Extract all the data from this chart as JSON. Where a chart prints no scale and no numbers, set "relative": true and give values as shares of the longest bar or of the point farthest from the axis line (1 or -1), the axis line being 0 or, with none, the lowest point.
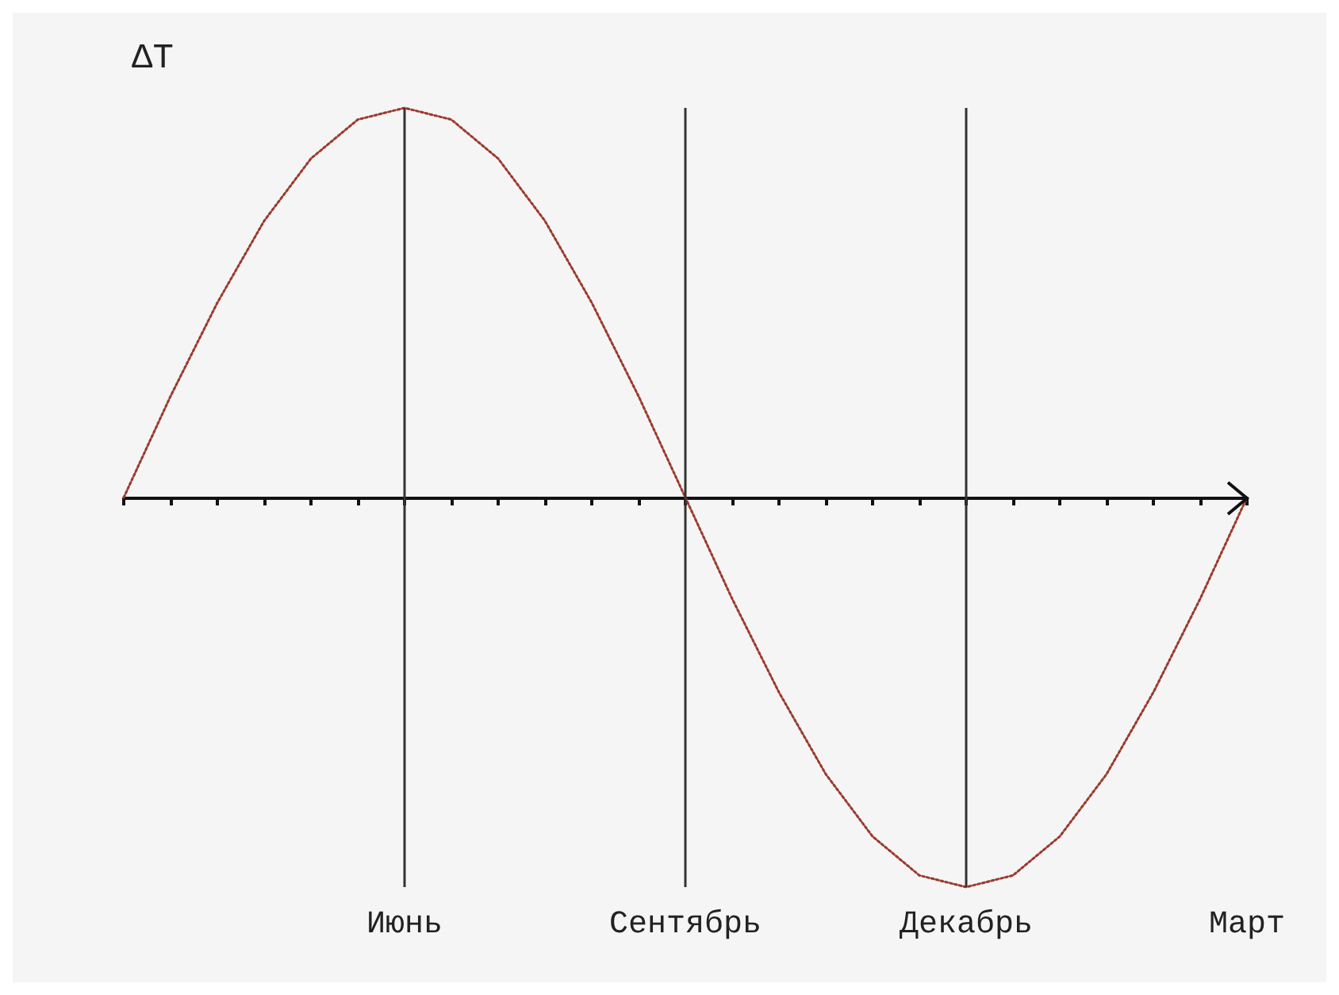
{
  "chart_data": {
    "type": "line",
    "relative": true,
    "ylabel": "ΔT",
    "categories": [
      null,
      null,
      null,
      null,
      null,
      null,
      "Июнь",
      null,
      null,
      null,
      null,
      null,
      "Сентябрь",
      null,
      null,
      null,
      null,
      null,
      "Декабрь",
      null,
      null,
      null,
      null,
      null,
      "Март"
    ],
    "series": [
      {
        "color": "#9b3a2e",
        "values": [
          0,
          0.26,
          0.5,
          0.71,
          0.87,
          0.97,
          1,
          0.97,
          0.87,
          0.71,
          0.5,
          0.26,
          0,
          -0.26,
          -0.5,
          -0.71,
          -0.87,
          -0.97,
          -1,
          -0.97,
          -0.87,
          -0.71,
          -0.5,
          -0.26,
          0
        ]
      }
    ],
    "tick_labels": "x",
    "ref_lines": [
      {
        "axis": "x",
        "value": "Июнь"
      },
      {
        "axis": "x",
        "value": "Сентябрь"
      },
      {
        "axis": "x",
        "value": "Декабрь"
      }
    ],
    "marker": "none",
    "line_style": "dotted",
    "grid": false
  }
}
